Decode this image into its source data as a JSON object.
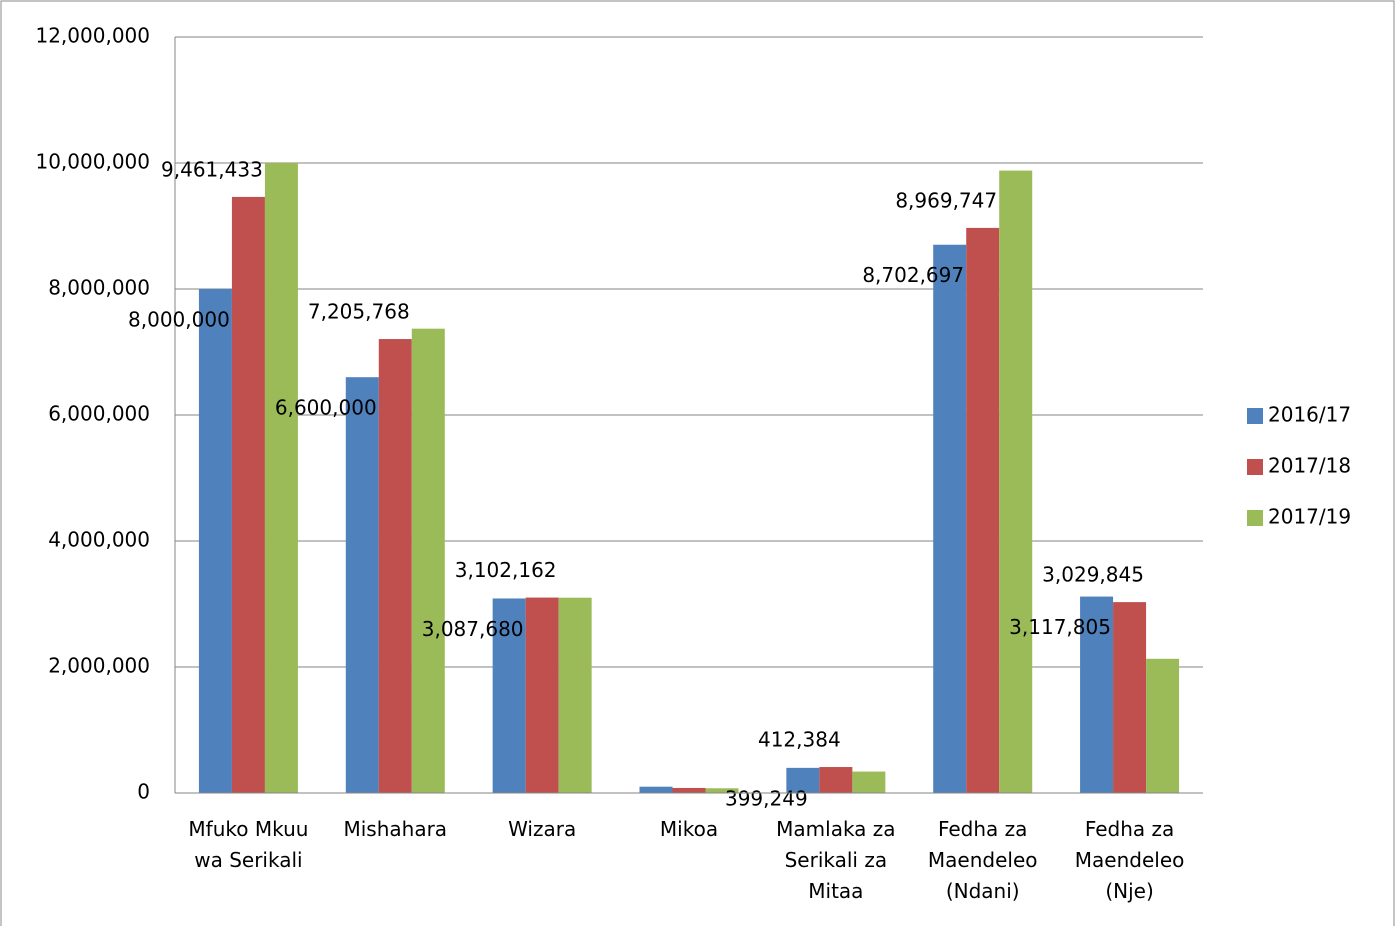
{
  "chart_data": {
    "type": "bar",
    "categories": [
      "Mfuko Mkuu wa Serikali",
      "Mishahara",
      "Wizara",
      "Mikoa",
      "Mamlaka za Serikali za Mitaa",
      "Fedha za Maendeleo (Ndani)",
      "Fedha za Maendeleo (Nje)"
    ],
    "series": [
      {
        "name": "2016/17",
        "color": "#4f81bd",
        "values": [
          8000000,
          6600000,
          3087680,
          100000,
          399249,
          8702697,
          3117805
        ],
        "value_labels": [
          "8,000,000",
          "6,600,000",
          "3,087,680",
          null,
          "399,249",
          "8,702,697",
          "3,117,805"
        ]
      },
      {
        "name": "2017/18",
        "color": "#c0504d",
        "values": [
          9461433,
          7205768,
          3102162,
          80000,
          412384,
          8969747,
          3029845
        ],
        "value_labels": [
          "9,461,433",
          "7,205,768",
          "3,102,162",
          null,
          "412,384",
          "8,969,747",
          "3,029,845"
        ]
      },
      {
        "name": "2017/19",
        "color": "#9bbb59",
        "values": [
          10000000,
          7370000,
          3100000,
          75000,
          340000,
          9880000,
          2130000
        ]
      }
    ],
    "ylim": [
      0,
      12000000
    ],
    "yticks": [
      0,
      {
        "value": 2000000,
        "label": "2,000,000"
      },
      {
        "value": 4000000,
        "label": "4,000,000"
      },
      {
        "value": 6000000,
        "label": "6,000,000"
      },
      {
        "value": 8000000,
        "label": "8,000,000"
      },
      {
        "value": 10000000,
        "label": "10,000,000"
      },
      {
        "value": 12000000,
        "label": "12,000,000"
      }
    ],
    "grid": true,
    "legend": "right"
  }
}
